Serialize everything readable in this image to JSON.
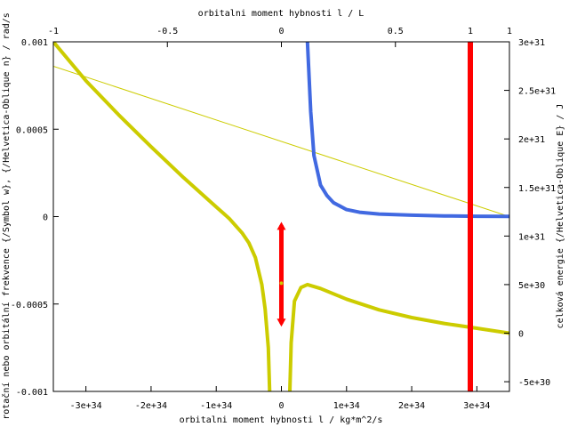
{
  "chart_data": {
    "type": "line",
    "title": "",
    "xlabel_bottom": "orbitalni moment hybnosti l / kg*m^2/s",
    "xlabel_top": "orbitalni moment hybnosti l / L",
    "ylabel_left": "rotační nebo orbitální frekvence  {/Symbol w}, {/Helvetica-Oblique n} / rad/s",
    "ylabel_right": "celková energie  {/Helvetica-Oblique E} / J",
    "x_bottom": {
      "range": [
        -3.5e+34,
        3.5e+34
      ],
      "ticks": [
        -3e+34,
        -2e+34,
        -1e+34,
        0,
        1e+34,
        2e+34,
        3e+34
      ],
      "tick_labels": [
        "-3e+34",
        "-2e+34",
        "-1e+34",
        "0",
        "1e+34",
        "2e+34",
        "3e+34"
      ]
    },
    "x_top": {
      "range": [
        -1,
        1
      ],
      "ticks": [
        -1,
        -0.5,
        0,
        0.5,
        1
      ],
      "tick_labels": [
        "-1",
        "-0.5",
        "0",
        "0.5",
        "1"
      ]
    },
    "y_left": {
      "range": [
        -0.001,
        0.001
      ],
      "ticks": [
        -0.001,
        -0.0005,
        0,
        0.0005,
        0.001
      ],
      "tick_labels": [
        "-0.001",
        "-0.0005",
        "0",
        "0.0005",
        "0.001"
      ]
    },
    "y_right": {
      "range": [
        -6e+30,
        3e+31
      ],
      "ticks": [
        -5e+30,
        0,
        5e+30,
        1e+31,
        1.5e+31,
        2e+31,
        2.5e+31,
        3e+31
      ],
      "tick_labels": [
        "-5e+30",
        "0",
        "5e+30",
        "1e+31",
        "1.5e+31",
        "2e+31",
        "2.5e+31",
        "3e+31"
      ]
    },
    "annotations": {
      "marker_top_label": "1",
      "marker_x_bottom": 2.9e+34
    },
    "series": [
      {
        "kind": "thick energy curve",
        "color": "#cccc00",
        "axis": "bottom-right",
        "points": [
          [
            -3.5e+34,
            3e+31
          ],
          [
            -3e+34,
            2.6e+31
          ],
          [
            -2.5e+34,
            2.25e+31
          ],
          [
            -2e+34,
            1.92e+31
          ],
          [
            -1.5e+34,
            1.6e+31
          ],
          [
            -1.2e+34,
            1.42e+31
          ],
          [
            -1e+34,
            1.3e+31
          ],
          [
            -8e+33,
            1.18e+31
          ],
          [
            -6e+33,
            1.03e+31
          ],
          [
            -5e+33,
            9.3e+30
          ],
          [
            -4e+33,
            7.8e+30
          ],
          [
            -3e+33,
            5e+30
          ],
          [
            -2.5e+33,
            2.5e+30
          ],
          [
            -2e+33,
            -1.5e+30
          ],
          [
            -1.8e+33,
            -6e+30
          ]
        ]
      },
      {
        "kind": "thick energy curve",
        "color": "#cccc00",
        "axis": "bottom-right",
        "points": [
          [
            1.3e+33,
            -6e+30
          ],
          [
            1.5e+33,
            -1e+30
          ],
          [
            2e+33,
            3.3e+30
          ],
          [
            3e+33,
            4.7e+30
          ],
          [
            4e+33,
            5e+30
          ],
          [
            6e+33,
            4.6e+30
          ],
          [
            1e+34,
            3.5e+30
          ],
          [
            1.5e+34,
            2.4e+30
          ],
          [
            2e+34,
            1.6e+30
          ],
          [
            2.5e+34,
            1e+30
          ],
          [
            3e+34,
            5e+29
          ],
          [
            3.5e+34,
            0
          ]
        ]
      },
      {
        "kind": "thin line",
        "color": "#cccc00",
        "axis": "bottom-left",
        "points": [
          [
            -3.5e+34,
            0.00086
          ],
          [
            3.5e+34,
            0.0
          ]
        ]
      },
      {
        "kind": "orbital frequency",
        "color": "#4169e1",
        "axis": "bottom-left",
        "points": [
          [
            4e+33,
            0.001
          ],
          [
            4.5e+33,
            0.0006
          ],
          [
            5e+33,
            0.00035
          ],
          [
            6e+33,
            0.00018
          ],
          [
            7e+33,
            0.00012
          ],
          [
            8e+33,
            8e-05
          ],
          [
            1e+34,
            4e-05
          ],
          [
            1.2e+34,
            2.5e-05
          ],
          [
            1.5e+34,
            1.5e-05
          ],
          [
            2e+34,
            8e-06
          ],
          [
            2.5e+34,
            4e-06
          ],
          [
            3e+34,
            2e-06
          ],
          [
            3.5e+34,
            1e-06
          ]
        ]
      },
      {
        "kind": "marker",
        "color": "#ff0000",
        "axis": "bottom-right",
        "points": [
          [
            2.9e+34,
            -6e+30
          ],
          [
            2.9e+34,
            3e+31
          ]
        ]
      },
      {
        "kind": "double arrow",
        "color": "#ff0000",
        "axis": "bottom-left",
        "points": [
          [
            0,
            -0.00063
          ],
          [
            0,
            -3e-05
          ]
        ]
      }
    ]
  }
}
